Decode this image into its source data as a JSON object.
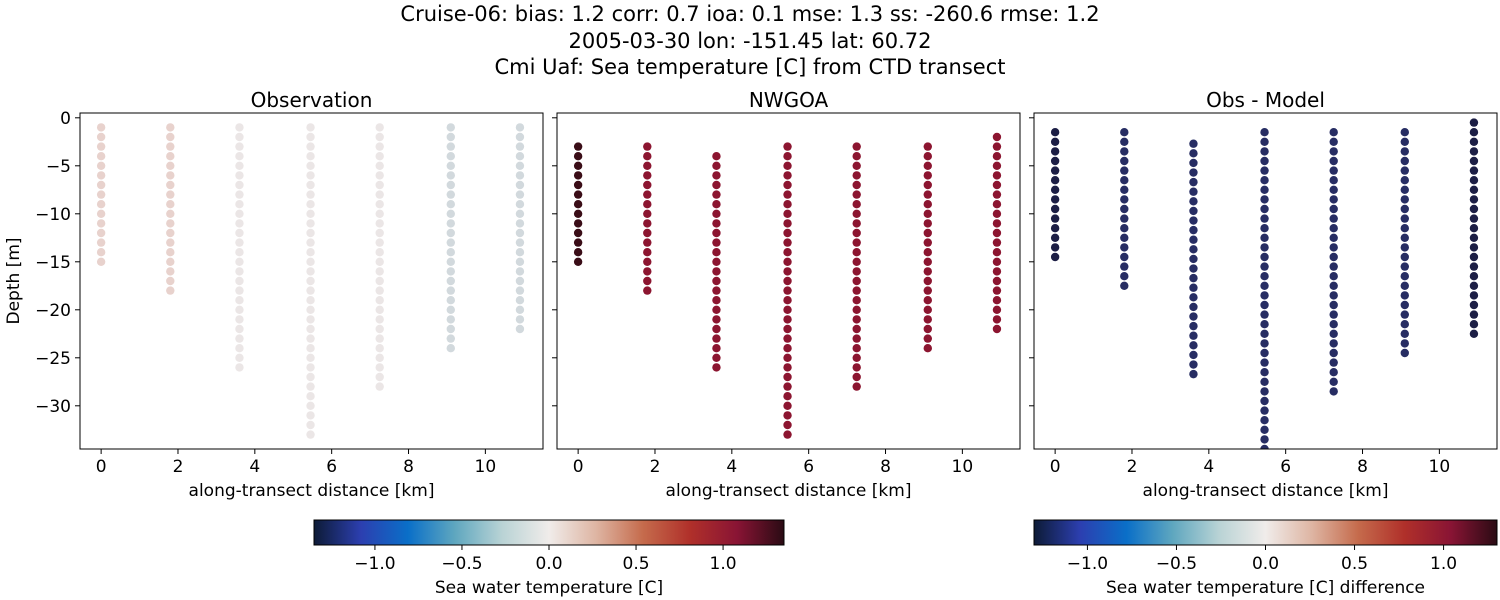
{
  "title": {
    "line1": "Cruise-06: bias: 1.2  corr: 0.7  ioa: 0.1  mse: 1.3  ss: -260.6  rmse: 1.2",
    "line2": "2005-03-30 lon: -151.45 lat: 60.72",
    "line3": "Cmi Uaf: Sea temperature [C] from CTD transect"
  },
  "colors": {
    "obs_positive": "#e8d2cd",
    "obs_neutral": "#ebe6e6",
    "obs_negative": "#d2d9dd",
    "model_dark": "#3a0d17",
    "model": "#8c1530",
    "diff": "#272d63",
    "diff_dark": "#1c1e45"
  },
  "chart_data": [
    {
      "type": "scatter",
      "title": "Observation",
      "xlabel": "along-transect distance [km]",
      "ylabel": "Depth [m]",
      "xlim": [
        -0.55,
        11.5
      ],
      "ylim": [
        -34.5,
        0.5
      ],
      "xticks": [
        "0",
        "2",
        "4",
        "6",
        "8",
        "10"
      ],
      "yticks": [
        "0",
        "−5",
        "−10",
        "−15",
        "−20",
        "−25",
        "−30"
      ],
      "grid": false,
      "stations": [
        {
          "x": 0.0,
          "depth_min": -15,
          "depth_max": -1,
          "color": "obs_positive"
        },
        {
          "x": 1.8,
          "depth_min": -18,
          "depth_max": -1,
          "color": "obs_positive"
        },
        {
          "x": 3.6,
          "depth_min": -26,
          "depth_max": -1,
          "color": "obs_neutral"
        },
        {
          "x": 5.45,
          "depth_min": -33,
          "depth_max": -1,
          "color": "obs_neutral"
        },
        {
          "x": 7.25,
          "depth_min": -28,
          "depth_max": -1,
          "color": "obs_neutral"
        },
        {
          "x": 9.1,
          "depth_min": -24,
          "depth_max": -1,
          "color": "obs_negative"
        },
        {
          "x": 10.9,
          "depth_min": -22,
          "depth_max": -1,
          "color": "obs_negative"
        }
      ]
    },
    {
      "type": "scatter",
      "title": "NWGOA",
      "xlabel": "along-transect distance [km]",
      "xlim": [
        -0.55,
        11.5
      ],
      "ylim": [
        -34.5,
        0.5
      ],
      "xticks": [
        "0",
        "2",
        "4",
        "6",
        "8",
        "10"
      ],
      "grid": false,
      "stations": [
        {
          "x": 0.0,
          "depth_min": -15,
          "depth_max": -3,
          "color": "model_dark"
        },
        {
          "x": 1.8,
          "depth_min": -18,
          "depth_max": -3,
          "color": "model"
        },
        {
          "x": 3.6,
          "depth_min": -26,
          "depth_max": -4,
          "color": "model"
        },
        {
          "x": 5.45,
          "depth_min": -33,
          "depth_max": -3,
          "color": "model"
        },
        {
          "x": 7.25,
          "depth_min": -28,
          "depth_max": -3,
          "color": "model"
        },
        {
          "x": 9.1,
          "depth_min": -24,
          "depth_max": -3,
          "color": "model"
        },
        {
          "x": 10.9,
          "depth_min": -22,
          "depth_max": -2,
          "color": "model"
        }
      ]
    },
    {
      "type": "scatter",
      "title": "Obs - Model",
      "xlabel": "along-transect distance [km]",
      "xlim": [
        -0.55,
        11.5
      ],
      "ylim": [
        -34.5,
        0.5
      ],
      "xticks": [
        "0",
        "2",
        "4",
        "6",
        "8",
        "10"
      ],
      "grid": false,
      "stations": [
        {
          "x": 0.0,
          "depth_min": -15,
          "depth_max": -1.5,
          "color": "diff_dark"
        },
        {
          "x": 1.8,
          "depth_min": -18,
          "depth_max": -1.5,
          "color": "diff"
        },
        {
          "x": 3.6,
          "depth_min": -27,
          "depth_max": -2.7,
          "color": "diff"
        },
        {
          "x": 5.45,
          "depth_min": -34.5,
          "depth_max": -1.5,
          "color": "diff"
        },
        {
          "x": 7.25,
          "depth_min": -29,
          "depth_max": -1.5,
          "color": "diff"
        },
        {
          "x": 9.1,
          "depth_min": -25,
          "depth_max": -1.5,
          "color": "diff"
        },
        {
          "x": 10.9,
          "depth_min": -22.5,
          "depth_max": -0.5,
          "color": "diff_dark"
        }
      ]
    }
  ],
  "colorbars": [
    {
      "label": "Sea water temperature [C]",
      "range": [
        -1.35,
        1.35
      ],
      "ticks": [
        "−1.0",
        "−0.5",
        "0.0",
        "0.5",
        "1.0"
      ],
      "tick_values": [
        -1.0,
        -0.5,
        0.0,
        0.5,
        1.0
      ]
    },
    {
      "label": "Sea water temperature [C] difference",
      "range": [
        -1.3,
        1.3
      ],
      "ticks": [
        "−1.0",
        "−0.5",
        "0.0",
        "0.5",
        "1.0"
      ],
      "tick_values": [
        -1.0,
        -0.5,
        0.0,
        0.5,
        1.0
      ]
    }
  ],
  "colormap": [
    "#0d1b36",
    "#2c3fb0",
    "#0a6fc8",
    "#5fa7bf",
    "#b9d3d5",
    "#f0ecea",
    "#deb5a3",
    "#c56b4c",
    "#b0302a",
    "#891434",
    "#2a0b14"
  ]
}
